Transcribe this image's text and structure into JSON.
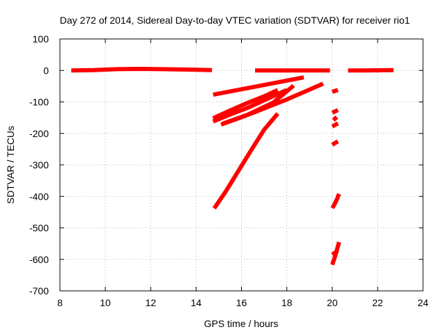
{
  "chart_data": {
    "type": "scatter",
    "title": "Day 272 of 2014, Sidereal Day-to-day VTEC variation (SDTVAR) for receiver rio1",
    "xlabel": "GPS time / hours",
    "ylabel": "SDTVAR / TECUs",
    "xlim": [
      8,
      24
    ],
    "ylim": [
      -700,
      100
    ],
    "xticks": [
      8,
      10,
      12,
      14,
      16,
      18,
      20,
      22,
      24
    ],
    "yticks": [
      100,
      0,
      -100,
      -200,
      -300,
      -400,
      -500,
      -600,
      -700
    ],
    "grid": true,
    "color": "#ff0000",
    "series": [
      {
        "segments": [
          {
            "x": [
              8.5,
              9.5,
              10.5,
              11.5,
              12.5,
              13.5,
              14.7
            ],
            "y": [
              0,
              1,
              4,
              5,
              4,
              3,
              1
            ]
          },
          {
            "x": [
              16.6,
              17.5,
              18.5,
              19.9
            ],
            "y": [
              0,
              0,
              0,
              0
            ]
          },
          {
            "x": [
              20.7,
              21.5,
              22.7
            ],
            "y": [
              0,
              0,
              1
            ]
          },
          {
            "x": [
              14.75,
              18.75
            ],
            "y": [
              -77,
              -22
            ]
          },
          {
            "x": [
              14.75,
              15.5,
              16.3,
              17.0,
              17.6
            ],
            "y": [
              -152,
              -127,
              -102,
              -82,
              -62
            ]
          },
          {
            "x": [
              14.75,
              15.5,
              16.3,
              17.2,
              18.0
            ],
            "y": [
              -162,
              -140,
              -118,
              -88,
              -62
            ]
          },
          {
            "x": [
              15.1,
              16.2,
              17.4,
              18.3
            ],
            "y": [
              -172,
              -143,
              -102,
              -48
            ]
          },
          {
            "x": [
              15.2,
              16.5,
              18.0,
              19.6
            ],
            "y": [
              -168,
              -135,
              -92,
              -42
            ]
          },
          {
            "x": [
              14.8,
              15.3,
              15.9,
              16.5,
              17.0,
              17.6
            ],
            "y": [
              -438,
              -385,
              -315,
              -245,
              -188,
              -137
            ]
          },
          {
            "x": [
              20.0,
              20.25
            ],
            "y": [
              -68,
              -62
            ]
          },
          {
            "x": [
              20.0,
              20.25
            ],
            "y": [
              -134,
              -126
            ]
          },
          {
            "x": [
              20.05,
              20.2
            ],
            "y": [
              -158,
              -148
            ]
          },
          {
            "x": [
              20.0,
              20.25
            ],
            "y": [
              -178,
              -168
            ]
          },
          {
            "x": [
              20.0,
              20.25
            ],
            "y": [
              -236,
              -225
            ]
          },
          {
            "x": [
              20.0,
              20.1,
              20.2,
              20.3
            ],
            "y": [
              -437,
              -425,
              -410,
              -392
            ]
          },
          {
            "x": [
              20.0,
              20.15,
              20.3
            ],
            "y": [
              -617,
              -585,
              -545
            ]
          },
          {
            "x": [
              20.0,
              20.25
            ],
            "y": [
              -585,
              -572
            ]
          }
        ]
      }
    ]
  }
}
